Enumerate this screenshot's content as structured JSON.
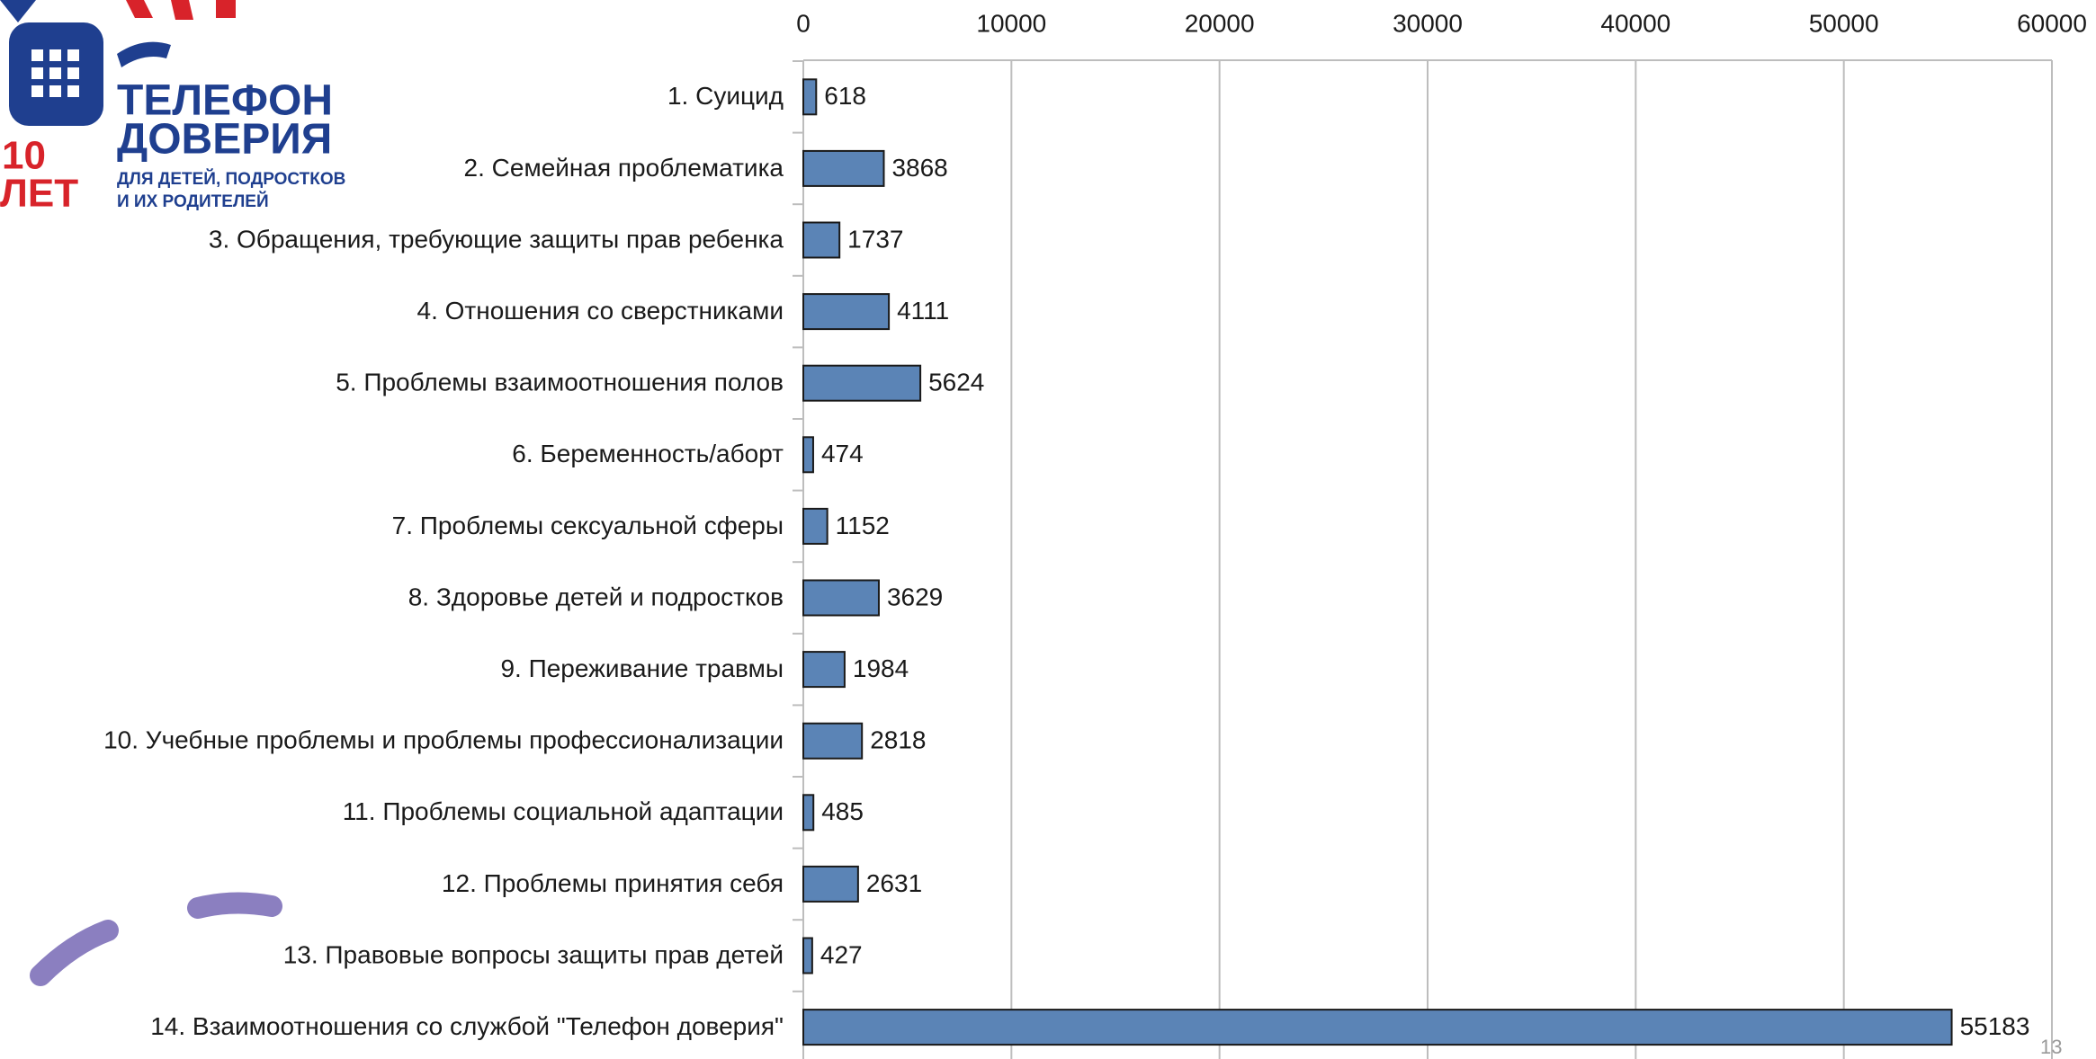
{
  "logo": {
    "title_line1": "ТЕЛЕФОН",
    "title_line2": "ДОВЕРИЯ",
    "subtitle_line1": "ДЛЯ ДЕТЕЙ, ПОДРОСТКОВ",
    "subtitle_line2": "И ИХ РОДИТЕЛЕЙ",
    "badge_number": "10",
    "badge_word": "ЛЕТ"
  },
  "page_number": "13",
  "chart_data": {
    "type": "bar",
    "orientation": "horizontal",
    "color": "#5b84b6",
    "categories": [
      "1. Суицид",
      "2. Семейная проблематика",
      "3. Обращения, требующие защиты прав ребенка",
      "4. Отношения со сверстниками",
      "5. Проблемы взаимоотношения полов",
      "6. Беременность/аборт",
      "7. Проблемы сексуальной сферы",
      "8. Здоровье детей и подростков",
      "9. Переживание травмы",
      "10. Учебные проблемы и проблемы профессионализации",
      "11. Проблемы социальной адаптации",
      "12. Проблемы принятия себя",
      "13. Правовые вопросы защиты прав детей",
      "14. Взаимоотношения со службой \"Телефон доверия\""
    ],
    "values": [
      618,
      3868,
      1737,
      4111,
      5624,
      474,
      1152,
      3629,
      1984,
      2818,
      485,
      2631,
      427,
      55183
    ],
    "xlim": [
      0,
      60000
    ],
    "xticks": [
      0,
      10000,
      20000,
      30000,
      40000,
      50000,
      60000
    ],
    "grid": true
  }
}
